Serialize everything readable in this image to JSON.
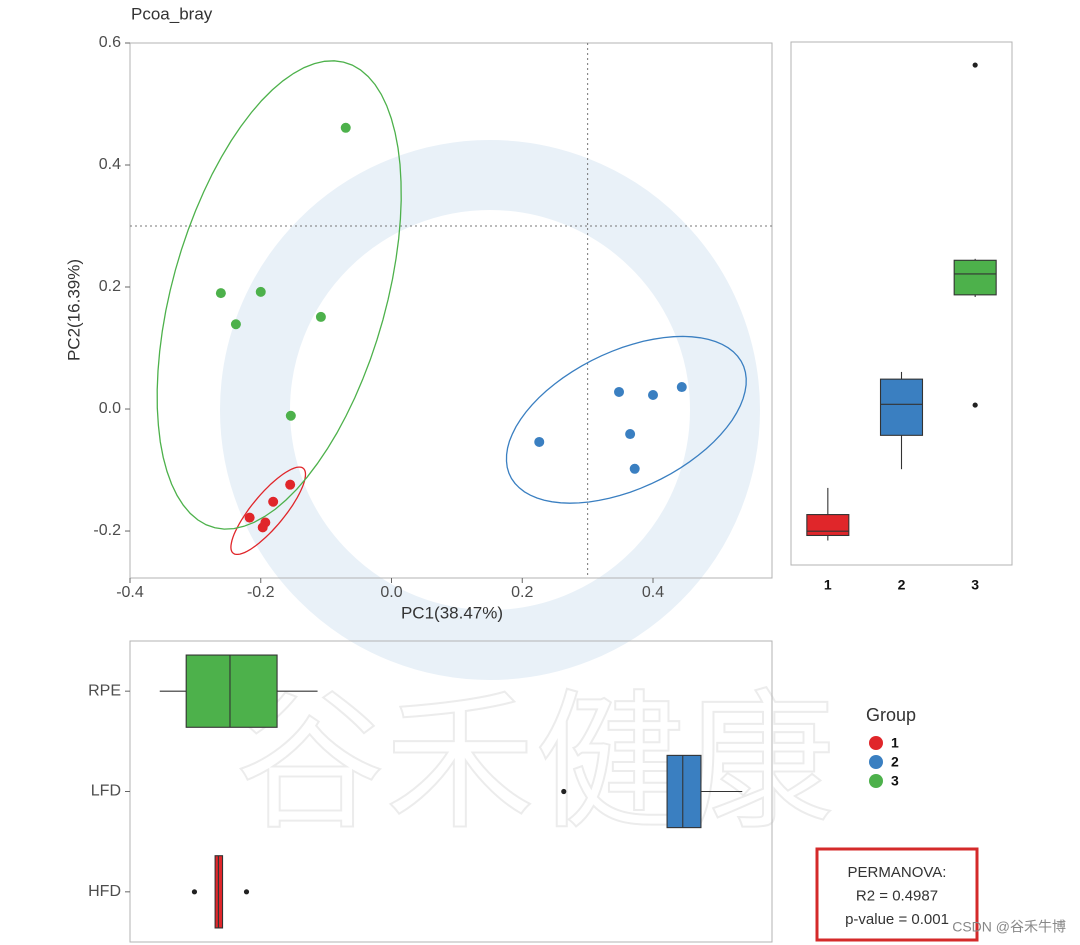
{
  "chart_data": [
    {
      "type": "scatter",
      "title": "Pcoa_bray",
      "x_label": "PC1(38.47%)",
      "y_label": "PC2(16.39%)",
      "xlim": [
        -0.4,
        0.582
      ],
      "ylim": [
        -0.277,
        0.6
      ],
      "xticks": [
        -0.4,
        -0.2,
        {
          "value": 0,
          "label": "0.0"
        },
        0.2,
        0.4
      ],
      "yticks": [
        -0.2,
        {
          "value": 0,
          "label": "0.0"
        },
        0.2,
        0.4,
        0.6
      ],
      "vlines": [
        0.3
      ],
      "hlines": [
        0.3
      ],
      "ellipses": true,
      "legend_title": "Group",
      "legend": "right",
      "series": [
        {
          "name": "1",
          "color": "#e0262a",
          "x": [
            -0.155,
            -0.181,
            -0.217,
            -0.193,
            -0.197
          ],
          "values": [
            -0.124,
            -0.152,
            -0.178,
            -0.186,
            -0.194
          ]
        },
        {
          "name": "2",
          "color": "#3a7fc1",
          "x": [
            0.348,
            0.4,
            0.444,
            0.226,
            0.365,
            0.372
          ],
          "values": [
            0.028,
            0.023,
            0.036,
            -0.054,
            -0.041,
            -0.098
          ]
        },
        {
          "name": "3",
          "color": "#4db14b",
          "x": [
            -0.07,
            -0.261,
            -0.2,
            -0.238,
            -0.108,
            -0.154
          ],
          "values": [
            0.461,
            0.19,
            0.192,
            0.139,
            0.151,
            -0.011
          ]
        }
      ],
      "annotations": [
        "PERMANOVA:",
        "R2 = 0.4987",
        "p-value = 0.001"
      ]
    },
    {
      "type": "boxplot",
      "orientation": "vertical",
      "ylim": [
        -0.233,
        0.493
      ],
      "categories": [
        "1",
        "2",
        "3"
      ],
      "colors": [
        "#e0262a",
        "#3a7fc1",
        "#4db14b"
      ],
      "boxes": [
        {
          "whislo": -0.199,
          "q1": -0.192,
          "median": -0.186,
          "q3": -0.163,
          "whishi": -0.126,
          "outliers": []
        },
        {
          "whislo": -0.1,
          "q1": -0.053,
          "median": -0.01,
          "q3": 0.025,
          "whishi": 0.035,
          "outliers": []
        },
        {
          "whislo": 0.139,
          "q1": 0.142,
          "median": 0.171,
          "q3": 0.19,
          "whishi": 0.192,
          "outliers": [
            0.461,
            -0.011
          ]
        }
      ]
    },
    {
      "type": "boxplot",
      "orientation": "horizontal",
      "xlim": [
        -0.3,
        0.477
      ],
      "categories": [
        "HFD",
        "LFD",
        "RPE"
      ],
      "colors": [
        "#e0262a",
        "#3a7fc1",
        "#4db14b"
      ],
      "boxes": [
        {
          "whislo": -0.197,
          "q1": -0.197,
          "median": -0.193,
          "q3": -0.188,
          "whishi": -0.188,
          "outliers": [
            -0.222,
            -0.159
          ]
        },
        {
          "whislo": 0.35,
          "q1": 0.35,
          "median": 0.369,
          "q3": 0.391,
          "whishi": 0.441,
          "outliers": [
            0.225
          ]
        },
        {
          "whislo": -0.264,
          "q1": -0.232,
          "median": -0.179,
          "q3": -0.122,
          "whishi": -0.073,
          "outliers": []
        }
      ]
    }
  ],
  "watermark": "谷禾健康",
  "credit": "CSDN @谷禾牛博"
}
